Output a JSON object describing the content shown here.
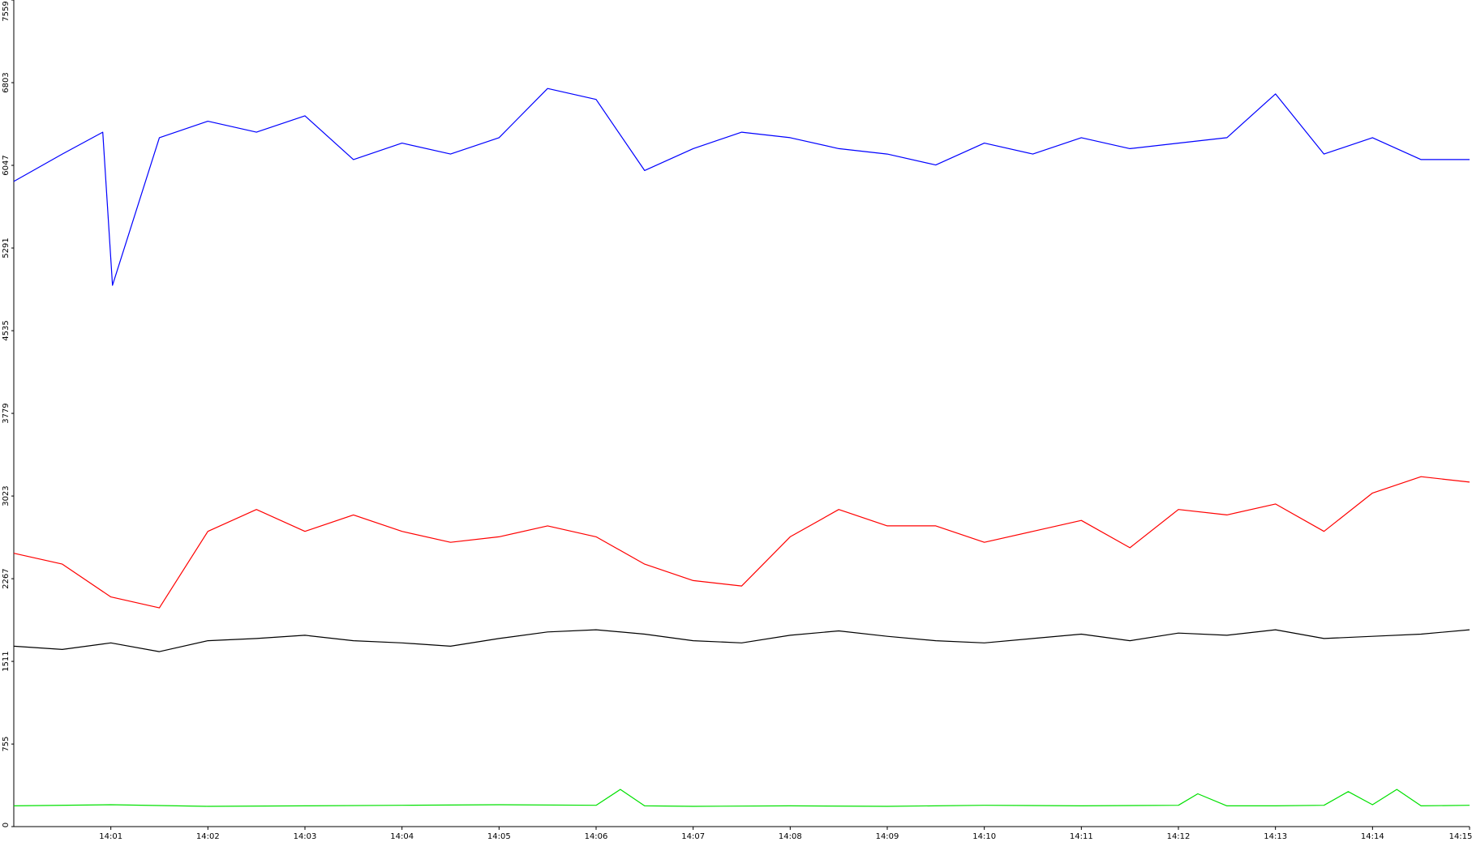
{
  "chart_data": {
    "type": "line",
    "title": "",
    "xlabel": "",
    "ylabel": "",
    "ylim": [
      0,
      7559
    ],
    "y_ticks": [
      "0",
      "755",
      "1511",
      "2267",
      "3023",
      "3779",
      "4535",
      "5291",
      "6047",
      "6803",
      "7559"
    ],
    "x_range": [
      "14:00:00",
      "14:15:00"
    ],
    "x_ticks": [
      "14:01",
      "14:02",
      "14:03",
      "14:04",
      "14:05",
      "14:06",
      "14:07",
      "14:08",
      "14:09",
      "14:10",
      "14:11",
      "14:12",
      "14:13",
      "14:14",
      "14:15"
    ],
    "grid": false,
    "legend": "none",
    "colors": {
      "blue": "#0000ff",
      "red": "#ff0000",
      "black": "#000000",
      "green": "#00e000",
      "axis": "#000000",
      "background": "#ffffff"
    },
    "series": [
      {
        "color": "#0000ff",
        "time": [
          "14:00:00",
          "14:00:30",
          "14:00:55",
          "14:01:01",
          "14:01:30",
          "14:02:00",
          "14:02:30",
          "14:03:00",
          "14:03:30",
          "14:04:00",
          "14:04:30",
          "14:05:00",
          "14:05:30",
          "14:06:00",
          "14:06:30",
          "14:07:00",
          "14:07:30",
          "14:08:00",
          "14:08:30",
          "14:09:00",
          "14:09:30",
          "14:10:00",
          "14:10:30",
          "14:11:00",
          "14:11:30",
          "14:12:00",
          "14:12:30",
          "14:13:00",
          "14:13:30",
          "14:14:00",
          "14:14:30",
          "14:15:00"
        ],
        "values": [
          5900,
          6150,
          6350,
          4950,
          6300,
          6450,
          6350,
          6500,
          6100,
          6250,
          6150,
          6300,
          6750,
          6650,
          6000,
          6200,
          6350,
          6300,
          6200,
          6150,
          6050,
          6250,
          6150,
          6300,
          6200,
          6250,
          6300,
          6700,
          6150,
          6300,
          6100,
          6100
        ]
      },
      {
        "color": "#ff0000",
        "time": [
          "14:00:00",
          "14:00:30",
          "14:01:00",
          "14:01:30",
          "14:02:00",
          "14:02:30",
          "14:03:00",
          "14:03:30",
          "14:04:00",
          "14:04:30",
          "14:05:00",
          "14:05:30",
          "14:06:00",
          "14:06:30",
          "14:07:00",
          "14:07:30",
          "14:08:00",
          "14:08:30",
          "14:09:00",
          "14:09:30",
          "14:10:00",
          "14:10:30",
          "14:11:00",
          "14:11:30",
          "14:12:00",
          "14:12:30",
          "14:13:00",
          "14:13:30",
          "14:14:00",
          "14:14:30",
          "14:15:00"
        ],
        "values": [
          2500,
          2400,
          2100,
          2000,
          2700,
          2900,
          2700,
          2850,
          2700,
          2600,
          2650,
          2750,
          2650,
          2400,
          2250,
          2200,
          2650,
          2900,
          2750,
          2750,
          2600,
          2700,
          2800,
          2550,
          2900,
          2850,
          2950,
          2700,
          3050,
          3200,
          3150
        ]
      },
      {
        "color": "#000000",
        "time": [
          "14:00:00",
          "14:00:30",
          "14:01:00",
          "14:01:30",
          "14:02:00",
          "14:02:30",
          "14:03:00",
          "14:03:30",
          "14:04:00",
          "14:04:30",
          "14:05:00",
          "14:05:30",
          "14:06:00",
          "14:06:30",
          "14:07:00",
          "14:07:30",
          "14:08:00",
          "14:08:30",
          "14:09:00",
          "14:09:30",
          "14:10:00",
          "14:10:30",
          "14:11:00",
          "14:11:30",
          "14:12:00",
          "14:12:30",
          "14:13:00",
          "14:13:30",
          "14:14:00",
          "14:14:30",
          "14:15:00"
        ],
        "values": [
          1650,
          1620,
          1680,
          1600,
          1700,
          1720,
          1750,
          1700,
          1680,
          1650,
          1720,
          1780,
          1800,
          1760,
          1700,
          1680,
          1750,
          1790,
          1740,
          1700,
          1680,
          1720,
          1760,
          1700,
          1770,
          1750,
          1800,
          1720,
          1740,
          1760,
          1800
        ]
      },
      {
        "color": "#00e000",
        "time": [
          "14:00:00",
          "14:01:00",
          "14:02:00",
          "14:03:00",
          "14:04:00",
          "14:05:00",
          "14:06:00",
          "14:06:15",
          "14:06:30",
          "14:07:00",
          "14:08:00",
          "14:09:00",
          "14:10:00",
          "14:11:00",
          "14:12:00",
          "14:12:12",
          "14:12:30",
          "14:13:00",
          "14:13:30",
          "14:13:45",
          "14:14:00",
          "14:14:15",
          "14:14:30",
          "14:15:00"
        ],
        "values": [
          190,
          200,
          185,
          190,
          195,
          200,
          195,
          340,
          190,
          185,
          190,
          185,
          195,
          190,
          195,
          300,
          190,
          190,
          195,
          320,
          200,
          340,
          190,
          195
        ]
      }
    ]
  }
}
